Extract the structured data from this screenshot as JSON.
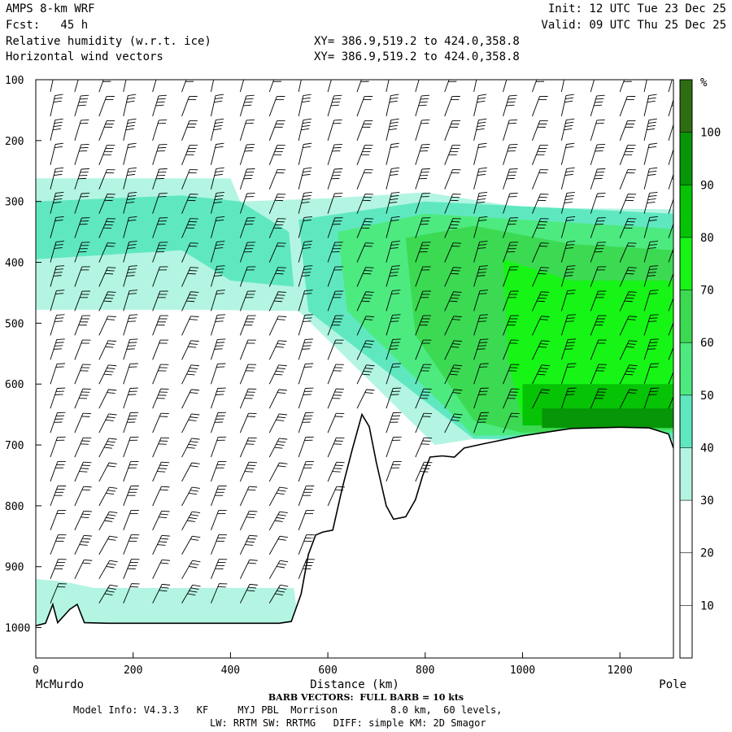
{
  "header": {
    "model": "AMPS 8-km WRF",
    "fcst": "Fcst:   45 h",
    "init": "Init: 12 UTC Tue 23 Dec 25",
    "valid": "Valid: 09 UTC Thu 25 Dec 25",
    "field1": "Relative humidity (w.r.t. ice)",
    "field2": "Horizontal wind vectors",
    "xy1": "XY= 386.9,519.2 to 424.0,358.8",
    "xy2": "XY= 386.9,519.2 to 424.0,358.8"
  },
  "footer": {
    "barb": "BARB VECTORS:  FULL BARB = 10 kts",
    "model_info": "Model Info: V4.3.3   KF     MYJ PBL  Morrison         8.0 km,  60 levels,",
    "physics": "LW: RRTM SW: RRTMG   DIFF: simple KM: 2D Smagor"
  },
  "chart_data": {
    "type": "heatmap",
    "title": "Relative humidity (w.r.t. ice)",
    "xlabel": "Distance (km)",
    "ylabel": "",
    "x_start_label": "McMurdo",
    "x_end_label": "Pole",
    "xlim": [
      0,
      1310
    ],
    "ylim": [
      1050,
      100
    ],
    "x_ticks": [
      0,
      200,
      400,
      600,
      800,
      1000,
      1200
    ],
    "y_ticks": [
      100,
      200,
      300,
      400,
      500,
      600,
      700,
      800,
      900,
      1000
    ],
    "colorbar": {
      "unit": "%",
      "levels": [
        10,
        20,
        30,
        40,
        50,
        60,
        70,
        80,
        90,
        100
      ],
      "colors": [
        "#ffffff",
        "#ffffff",
        "#ffffff",
        "#b3f5e2",
        "#5fe8c0",
        "#4dea80",
        "#3cda52",
        "#16f516",
        "#06c306",
        "#079607",
        "#2f6d12"
      ]
    },
    "terrain_pressure": [
      [
        0,
        997
      ],
      [
        20,
        993
      ],
      [
        35,
        962
      ],
      [
        45,
        992
      ],
      [
        70,
        970
      ],
      [
        85,
        962
      ],
      [
        100,
        992
      ],
      [
        150,
        993
      ],
      [
        300,
        993
      ],
      [
        500,
        993
      ],
      [
        525,
        990
      ],
      [
        545,
        945
      ],
      [
        560,
        880
      ],
      [
        575,
        848
      ],
      [
        590,
        843
      ],
      [
        610,
        840
      ],
      [
        630,
        770
      ],
      [
        650,
        708
      ],
      [
        670,
        650
      ],
      [
        685,
        670
      ],
      [
        700,
        730
      ],
      [
        720,
        800
      ],
      [
        735,
        822
      ],
      [
        760,
        818
      ],
      [
        780,
        790
      ],
      [
        795,
        750
      ],
      [
        810,
        720
      ],
      [
        835,
        718
      ],
      [
        860,
        720
      ],
      [
        880,
        705
      ],
      [
        920,
        698
      ],
      [
        1000,
        685
      ],
      [
        1100,
        673
      ],
      [
        1200,
        671
      ],
      [
        1260,
        672
      ],
      [
        1300,
        682
      ],
      [
        1310,
        705
      ]
    ],
    "humidity_regions": [
      {
        "rh": 35,
        "polygon": [
          [
            0,
            262
          ],
          [
            400,
            262
          ],
          [
            420,
            300
          ],
          [
            600,
            295
          ],
          [
            800,
            285
          ],
          [
            1000,
            310
          ],
          [
            1310,
            313
          ],
          [
            1310,
            700
          ],
          [
            900,
            690
          ],
          [
            820,
            700
          ],
          [
            540,
            480
          ],
          [
            350,
            478
          ],
          [
            0,
            478
          ]
        ]
      },
      {
        "rh": 35,
        "polygon": [
          [
            0,
            920
          ],
          [
            60,
            925
          ],
          [
            120,
            935
          ],
          [
            530,
            935
          ],
          [
            540,
            995
          ],
          [
            0,
            995
          ]
        ]
      },
      {
        "rh": 45,
        "polygon": [
          [
            0,
            300
          ],
          [
            300,
            290
          ],
          [
            420,
            300
          ],
          [
            520,
            350
          ],
          [
            530,
            440
          ],
          [
            400,
            430
          ],
          [
            300,
            380
          ],
          [
            0,
            395
          ]
        ]
      },
      {
        "rh": 45,
        "polygon": [
          [
            540,
            330
          ],
          [
            800,
            300
          ],
          [
            1310,
            320
          ],
          [
            1310,
            690
          ],
          [
            900,
            690
          ],
          [
            560,
            480
          ]
        ]
      },
      {
        "rh": 55,
        "polygon": [
          [
            620,
            350
          ],
          [
            800,
            320
          ],
          [
            1310,
            345
          ],
          [
            1310,
            680
          ],
          [
            900,
            685
          ],
          [
            640,
            480
          ]
        ]
      },
      {
        "rh": 65,
        "polygon": [
          [
            760,
            360
          ],
          [
            900,
            340
          ],
          [
            1100,
            370
          ],
          [
            1310,
            380
          ],
          [
            1310,
            675
          ],
          [
            1000,
            680
          ],
          [
            900,
            660
          ],
          [
            780,
            520
          ]
        ]
      },
      {
        "rh": 75,
        "polygon": [
          [
            960,
            395
          ],
          [
            1100,
            430
          ],
          [
            1310,
            430
          ],
          [
            1310,
            660
          ],
          [
            1000,
            660
          ],
          [
            970,
            560
          ]
        ]
      },
      {
        "rh": 85,
        "polygon": [
          [
            1000,
            600
          ],
          [
            1310,
            600
          ],
          [
            1310,
            668
          ],
          [
            1000,
            668
          ]
        ]
      },
      {
        "rh": 95,
        "polygon": [
          [
            1040,
            640
          ],
          [
            1310,
            640
          ],
          [
            1310,
            672
          ],
          [
            1040,
            672
          ]
        ]
      }
    ],
    "wind_column_x": [
      30,
      80,
      130,
      180,
      240,
      300,
      360,
      420,
      480,
      540,
      600,
      660,
      720,
      780,
      840,
      900,
      960,
      1020,
      1080,
      1140,
      1200,
      1250,
      1300
    ],
    "wind_levels": [
      120,
      160,
      200,
      240,
      280,
      320,
      360,
      400,
      440,
      480,
      520,
      560,
      600,
      640,
      680,
      720,
      760,
      800,
      840,
      880,
      920,
      960
    ]
  }
}
